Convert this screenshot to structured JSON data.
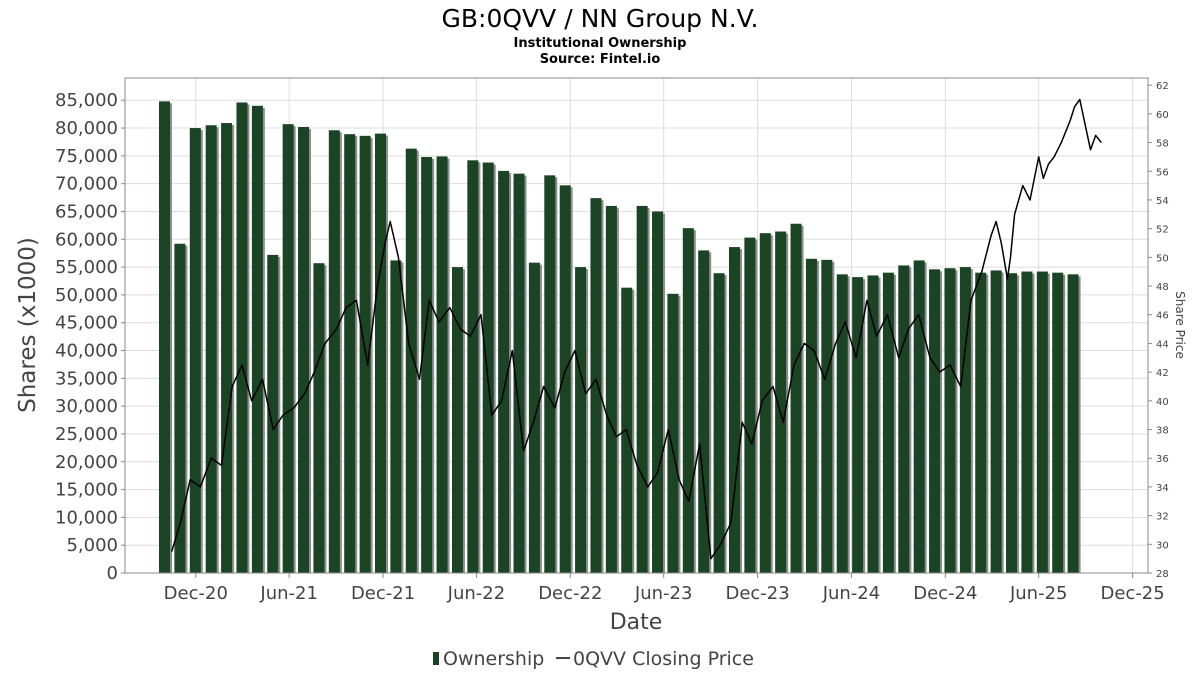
{
  "chart_data": {
    "type": "bar",
    "title": "GB:0QVV / NN Group N.V.",
    "subtitle": "Institutional Ownership",
    "source": "Source: Fintel.io",
    "xlabel": "Date",
    "ylabel": "Shares (x1000)",
    "y2label": "Share Price",
    "ylim": [
      0,
      89000
    ],
    "y2lim": [
      28,
      62.5
    ],
    "yticks": [
      0,
      5000,
      10000,
      15000,
      20000,
      25000,
      30000,
      35000,
      40000,
      45000,
      50000,
      55000,
      60000,
      65000,
      70000,
      75000,
      80000,
      85000
    ],
    "ytick_labels": [
      "0",
      "5,000",
      "10,000",
      "15,000",
      "20,000",
      "25,000",
      "30,000",
      "35,000",
      "40,000",
      "45,000",
      "50,000",
      "55,000",
      "60,000",
      "65,000",
      "70,000",
      "75,000",
      "80,000",
      "85,000"
    ],
    "y2ticks": [
      28,
      30,
      32,
      34,
      36,
      38,
      40,
      42,
      44,
      46,
      48,
      50,
      52,
      54,
      56,
      58,
      60,
      62
    ],
    "y2tick_labels": [
      "28",
      "30",
      "32",
      "34",
      "36",
      "38",
      "40",
      "42",
      "44",
      "46",
      "48",
      "50",
      "52",
      "54",
      "56",
      "58",
      "60",
      "62"
    ],
    "xlim": [
      "2020-07-16",
      "2025-12-31"
    ],
    "xticks": [
      "2020-12-01",
      "2021-06-01",
      "2021-12-01",
      "2022-06-01",
      "2022-12-01",
      "2023-06-01",
      "2023-12-01",
      "2024-06-01",
      "2024-12-01",
      "2025-06-01",
      "2025-12-01"
    ],
    "xtick_labels": [
      "Dec-20",
      "Jun-21",
      "Dec-21",
      "Jun-22",
      "Dec-22",
      "Jun-23",
      "Dec-23",
      "Jun-24",
      "Dec-24",
      "Jun-25",
      "Dec-25"
    ],
    "grid": true,
    "legend_position": "bottom",
    "series": [
      {
        "name": "Ownership",
        "kind": "bar",
        "color": "#1a4423",
        "dates": [
          "2020-10-01",
          "2020-10-31",
          "2020-11-30",
          "2020-12-31",
          "2021-01-30",
          "2021-03-01",
          "2021-03-31",
          "2021-04-30",
          "2021-05-30",
          "2021-06-29",
          "2021-07-29",
          "2021-08-28",
          "2021-09-27",
          "2021-10-27",
          "2021-11-26",
          "2021-12-26",
          "2022-01-25",
          "2022-02-24",
          "2022-03-26",
          "2022-04-25",
          "2022-05-25",
          "2022-06-24",
          "2022-07-24",
          "2022-08-23",
          "2022-09-22",
          "2022-10-22",
          "2022-11-21",
          "2022-12-21",
          "2023-01-20",
          "2023-02-19",
          "2023-03-21",
          "2023-04-20",
          "2023-05-20",
          "2023-06-19",
          "2023-07-19",
          "2023-08-18",
          "2023-09-17",
          "2023-10-17",
          "2023-11-16",
          "2023-12-16",
          "2024-01-15",
          "2024-02-14",
          "2024-03-15",
          "2024-04-14",
          "2024-05-14",
          "2024-06-13",
          "2024-07-13",
          "2024-08-12",
          "2024-09-11",
          "2024-10-11",
          "2024-11-10",
          "2024-12-10",
          "2025-01-09",
          "2025-02-08",
          "2025-03-10",
          "2025-04-09",
          "2025-05-09",
          "2025-06-08",
          "2025-07-08",
          "2025-08-07",
          "2025-09-06",
          "2025-10-06"
        ],
        "values": [
          84800,
          59200,
          80000,
          80500,
          80900,
          84600,
          84000,
          57200,
          80700,
          80200,
          55700,
          79600,
          78900,
          78600,
          79000,
          56200,
          76300,
          74800,
          74900,
          55000,
          74200,
          73800,
          72300,
          71800,
          55800,
          71500,
          69700,
          55000,
          67400,
          66000,
          51300,
          66000,
          65000,
          50200,
          62000,
          58000,
          53900,
          58600,
          60300,
          61100,
          61400,
          62800,
          56500,
          56300,
          53700,
          53200,
          53500,
          54000,
          55300,
          56200,
          54600,
          54800,
          55000,
          54000,
          54400,
          53900,
          54200,
          54200,
          54000,
          53700,
          null,
          null
        ],
        "values_note": ""
      },
      {
        "name": "0QVV Closing Price",
        "kind": "line",
        "color": "#000000",
        "dates": [
          "2020-10-15",
          "2020-11-01",
          "2020-11-20",
          "2020-12-10",
          "2020-12-31",
          "2021-01-20",
          "2021-02-10",
          "2021-03-01",
          "2021-03-20",
          "2021-04-10",
          "2021-05-01",
          "2021-05-20",
          "2021-06-10",
          "2021-07-01",
          "2021-07-20",
          "2021-08-10",
          "2021-09-01",
          "2021-09-20",
          "2021-10-10",
          "2021-11-01",
          "2021-11-20",
          "2021-12-05",
          "2021-12-15",
          "2021-12-31",
          "2022-01-20",
          "2022-02-10",
          "2022-03-01",
          "2022-03-20",
          "2022-04-10",
          "2022-05-01",
          "2022-05-20",
          "2022-06-10",
          "2022-07-01",
          "2022-07-20",
          "2022-08-10",
          "2022-09-01",
          "2022-09-20",
          "2022-10-10",
          "2022-11-01",
          "2022-11-20",
          "2022-12-10",
          "2022-12-31",
          "2023-01-20",
          "2023-02-10",
          "2023-03-01",
          "2023-03-20",
          "2023-04-10",
          "2023-05-01",
          "2023-05-20",
          "2023-06-10",
          "2023-07-01",
          "2023-07-20",
          "2023-08-10",
          "2023-09-01",
          "2023-09-20",
          "2023-10-10",
          "2023-11-01",
          "2023-11-20",
          "2023-12-10",
          "2023-12-31",
          "2024-01-20",
          "2024-02-10",
          "2024-03-01",
          "2024-03-20",
          "2024-04-10",
          "2024-05-01",
          "2024-05-20",
          "2024-06-10",
          "2024-07-01",
          "2024-07-20",
          "2024-08-10",
          "2024-09-01",
          "2024-09-20",
          "2024-10-10",
          "2024-11-01",
          "2024-11-20",
          "2024-12-10",
          "2024-12-31",
          "2025-01-20",
          "2025-02-10",
          "2025-02-28",
          "2025-03-10",
          "2025-03-20",
          "2025-04-01",
          "2025-04-07",
          "2025-04-15",
          "2025-05-01",
          "2025-05-15",
          "2025-06-01",
          "2025-06-10",
          "2025-06-20",
          "2025-07-01",
          "2025-07-15",
          "2025-08-01",
          "2025-08-10",
          "2025-08-20",
          "2025-09-01",
          "2025-09-10",
          "2025-09-20",
          "2025-10-01"
        ],
        "values": [
          29.5,
          31.5,
          34.5,
          34.0,
          36.0,
          35.5,
          41.0,
          42.5,
          40.0,
          41.5,
          38.0,
          39.0,
          39.5,
          40.5,
          42.0,
          44.0,
          45.0,
          46.5,
          47.0,
          42.5,
          48.0,
          51.0,
          52.5,
          50.0,
          44.0,
          41.5,
          47.0,
          45.5,
          46.5,
          45.0,
          44.5,
          46.0,
          39.0,
          40.0,
          43.5,
          36.5,
          38.5,
          41.0,
          39.5,
          42.0,
          43.5,
          40.5,
          41.5,
          39.0,
          37.5,
          38.0,
          35.5,
          34.0,
          35.0,
          38.0,
          34.5,
          33.0,
          37.0,
          29.0,
          30.0,
          31.5,
          38.5,
          37.0,
          40.0,
          41.0,
          38.5,
          42.5,
          44.0,
          43.5,
          41.5,
          44.0,
          45.5,
          43.0,
          47.0,
          44.5,
          46.0,
          43.0,
          45.0,
          46.0,
          43.0,
          42.0,
          42.5,
          41.0,
          47.0,
          49.0,
          51.5,
          52.5,
          51.0,
          48.5,
          50.0,
          53.0,
          55.0,
          54.0,
          57.0,
          55.5,
          56.5,
          57.0,
          58.0,
          59.5,
          60.5,
          61.0,
          59.0,
          57.5,
          58.5,
          58.0
        ]
      }
    ]
  },
  "legend": {
    "ownership_label": "Ownership",
    "price_label": "0QVV Closing Price"
  },
  "colors": {
    "bar": "#1a4423",
    "bar_shadow": "#8e8e8e",
    "line": "#000000",
    "grid": "#dddddd",
    "frame": "#888888"
  }
}
